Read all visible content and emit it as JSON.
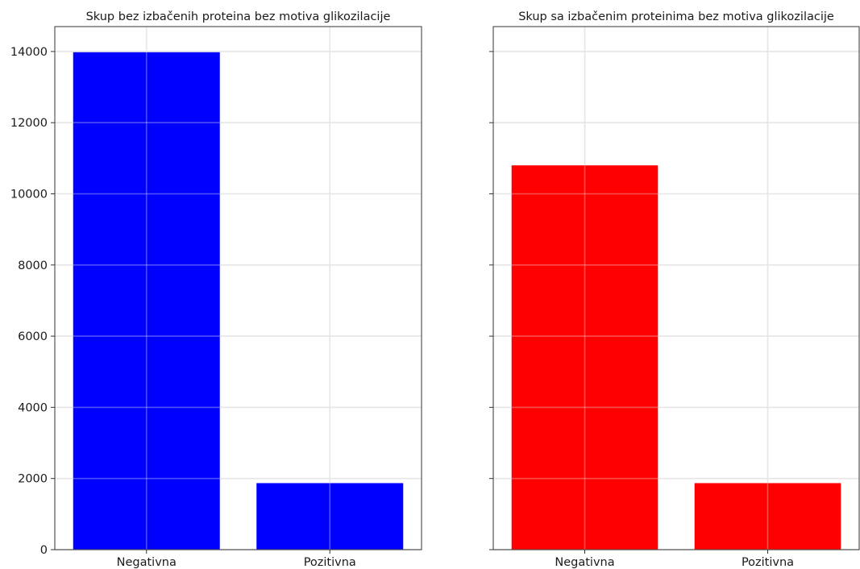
{
  "chart_data": [
    {
      "type": "bar",
      "title": "Skup bez izbačenih proteina bez motiva glikozilacije",
      "categories": [
        "Negativna",
        "Pozitivna"
      ],
      "values": [
        13980,
        1870
      ],
      "color": "#0000ff",
      "xlabel": "",
      "ylabel": "",
      "ylim": [
        0,
        14700
      ],
      "yticks": [
        0,
        2000,
        4000,
        6000,
        8000,
        10000,
        12000,
        14000
      ],
      "grid": true
    },
    {
      "type": "bar",
      "title": "Skup sa izbačenim proteinima bez motiva glikozilacije",
      "categories": [
        "Negativna",
        "Pozitivna"
      ],
      "values": [
        10800,
        1870
      ],
      "color": "#ff0000",
      "xlabel": "",
      "ylabel": "",
      "ylim": [
        0,
        14700
      ],
      "yticks": [
        0,
        2000,
        4000,
        6000,
        8000,
        10000,
        12000,
        14000
      ],
      "grid": true
    }
  ]
}
